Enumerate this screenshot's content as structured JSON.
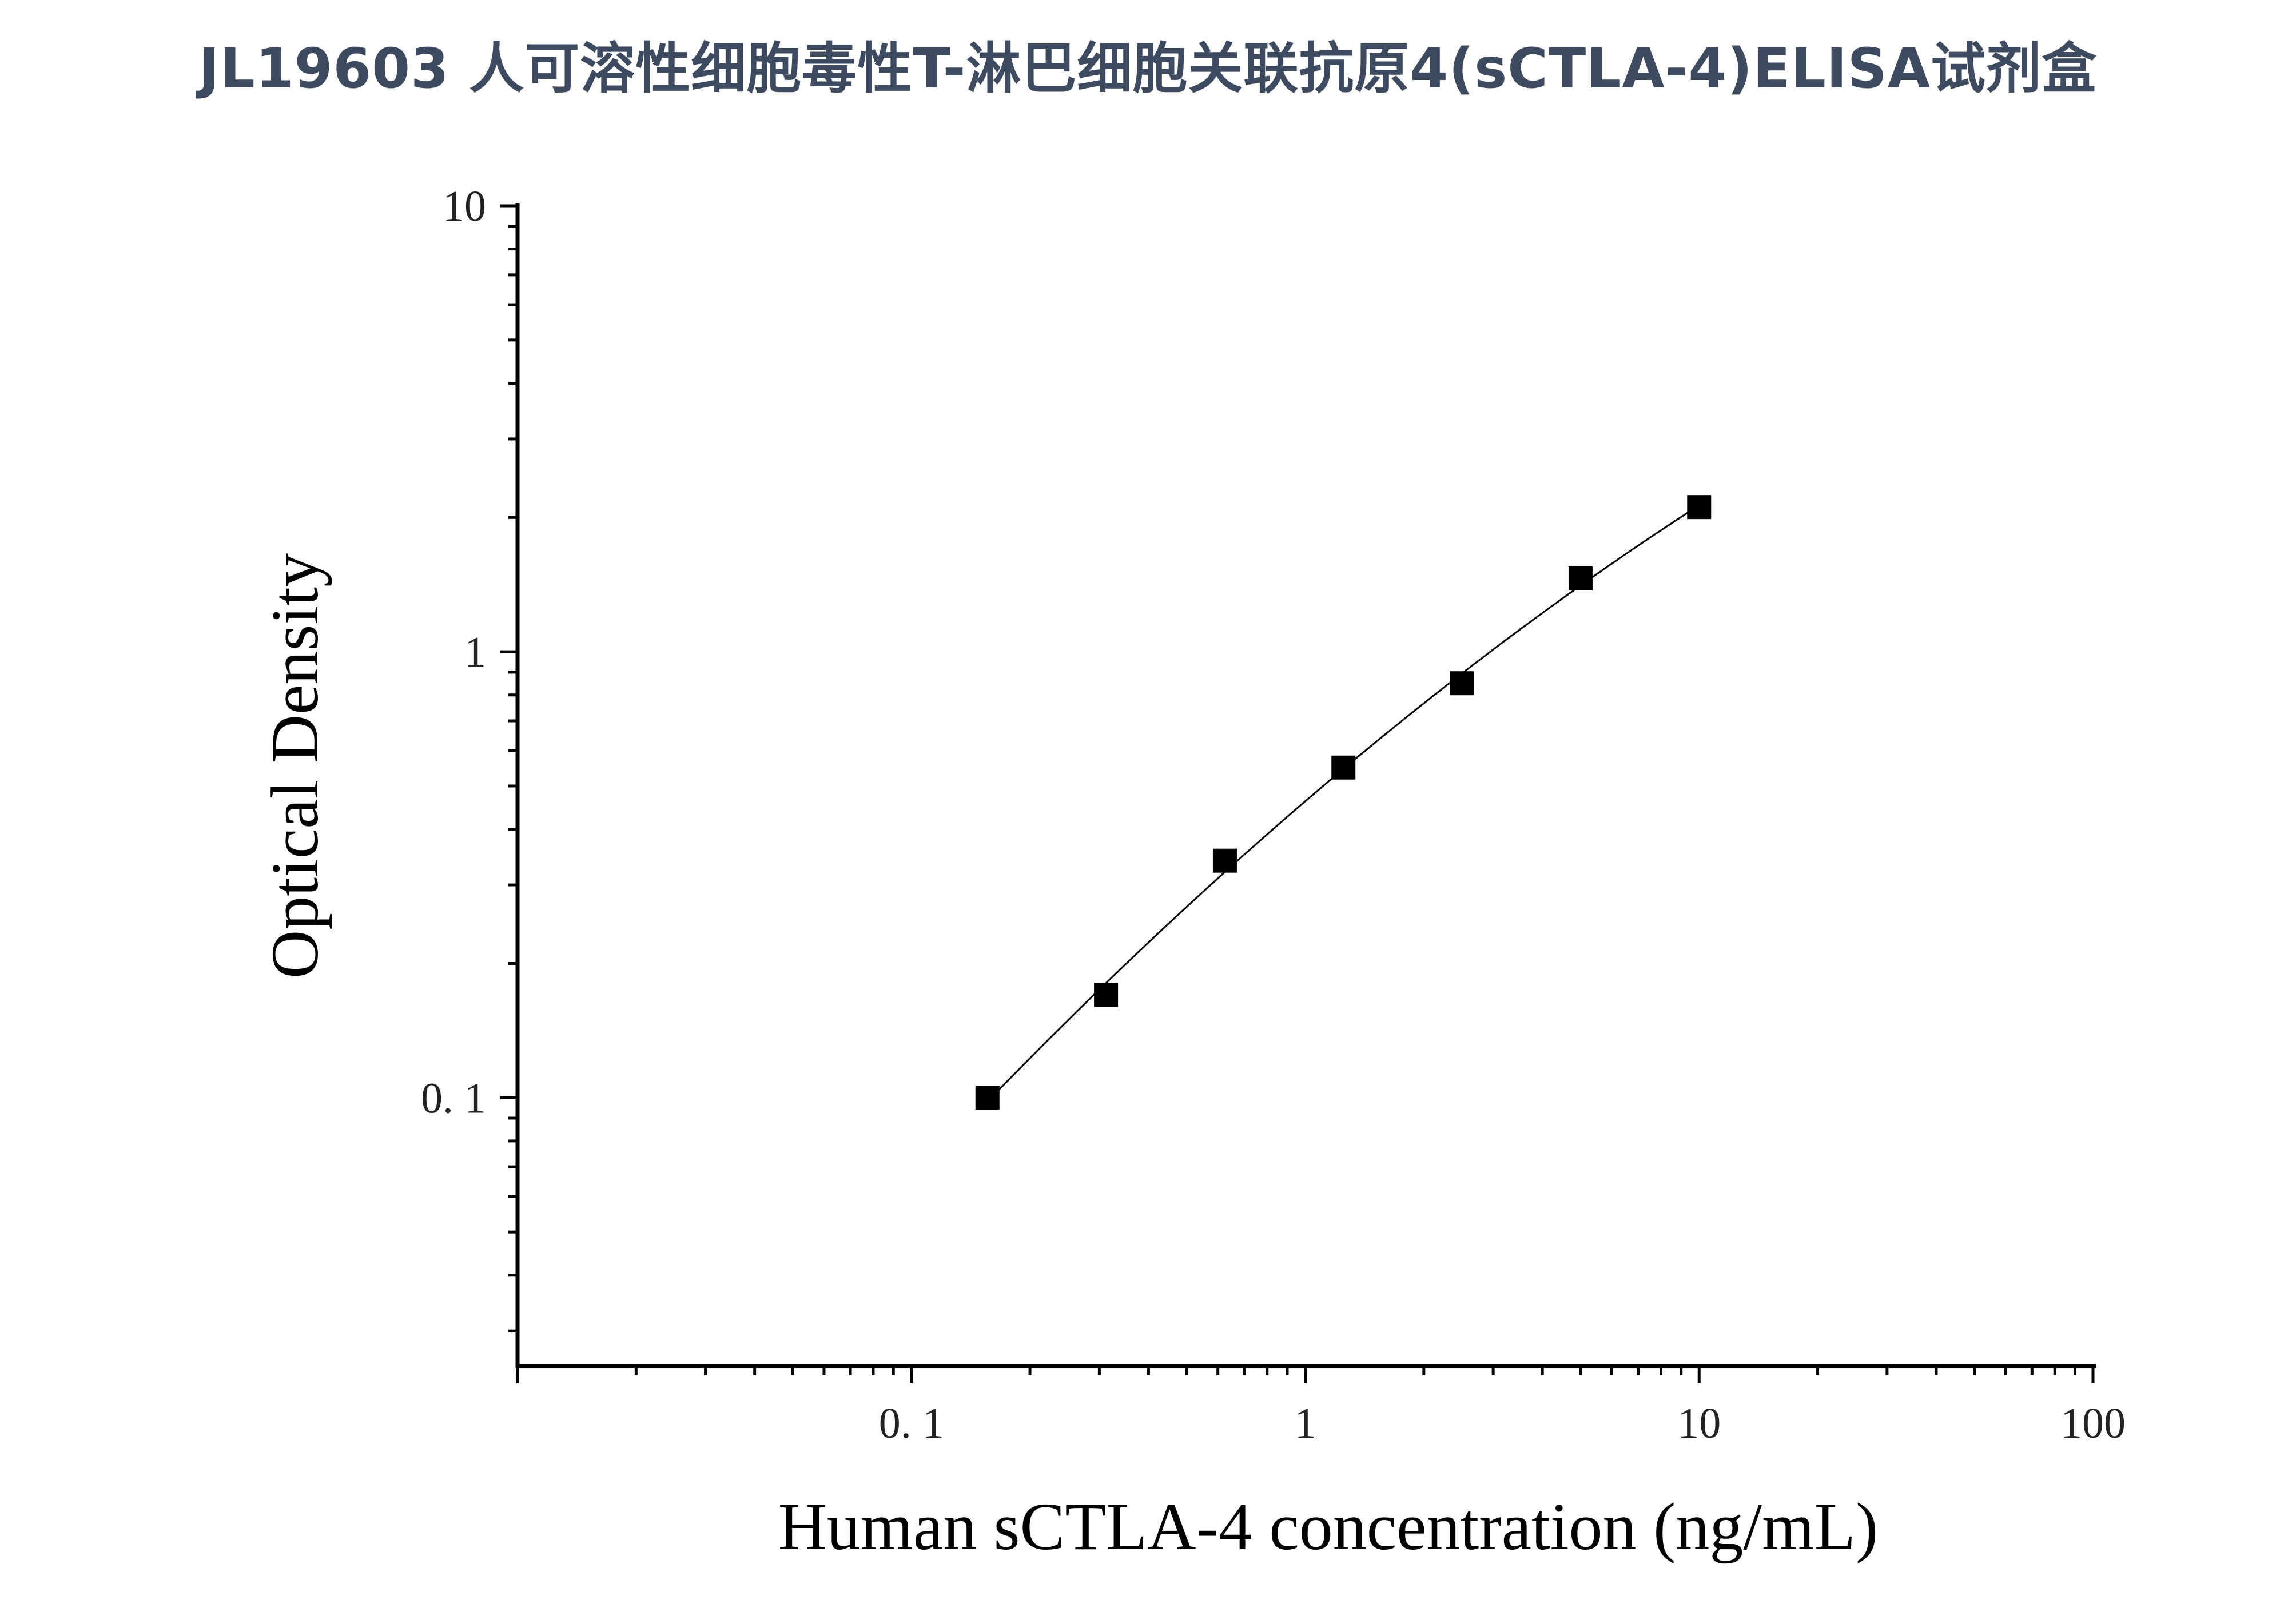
{
  "title": "JL19603 人可溶性细胞毒性T-淋巴细胞关联抗原4(sCTLA-4)ELISA试剂盒",
  "chart_data": {
    "type": "scatter",
    "title": "JL19603 人可溶性细胞毒性T-淋巴细胞关联抗原4(sCTLA-4)ELISA试剂盒",
    "xlabel": "Human sCTLA-4 concentration (ng/mL)",
    "ylabel": "Optical Density",
    "x_scale": "log",
    "y_scale": "log",
    "xlim": [
      0.01,
      100
    ],
    "ylim": [
      0.025,
      10
    ],
    "x_ticks": [
      {
        "value": 0.1,
        "label": "0. 1"
      },
      {
        "value": 1,
        "label": "1"
      },
      {
        "value": 10,
        "label": "10"
      },
      {
        "value": 100,
        "label": "100"
      }
    ],
    "y_ticks": [
      {
        "value": 0.1,
        "label": "0. 1"
      },
      {
        "value": 1,
        "label": "1"
      },
      {
        "value": 10,
        "label": "10"
      }
    ],
    "grid": false,
    "legend": "none",
    "series": [
      {
        "marker": "square",
        "color": "#000000",
        "x": [
          0.156,
          0.312,
          0.625,
          1.25,
          2.5,
          5,
          10
        ],
        "y": [
          0.1,
          0.17,
          0.34,
          0.55,
          0.85,
          1.46,
          2.11
        ]
      }
    ],
    "fit_curve": {
      "color": "#000000",
      "range": [
        0.156,
        10
      ]
    }
  }
}
